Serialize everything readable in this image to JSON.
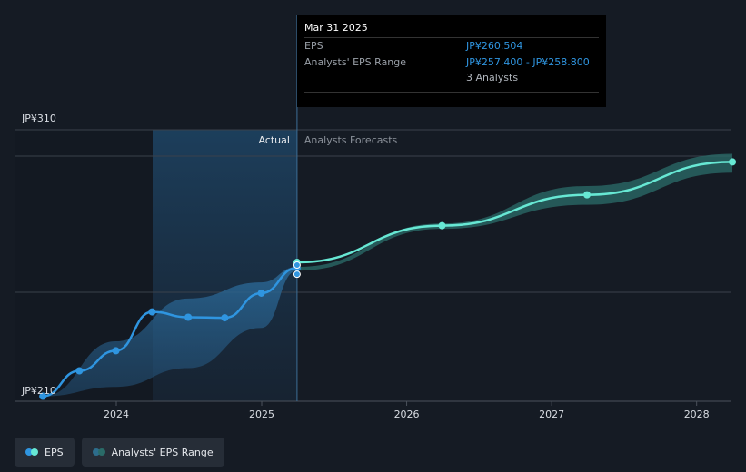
{
  "chart_data": {
    "type": "line",
    "y_axis": {
      "top_label": "JP¥310",
      "bottom_label": "JP¥210",
      "ylim": [
        210,
        310
      ]
    },
    "x_axis": {
      "ticks": [
        "2024",
        "2025",
        "2026",
        "2027",
        "2028"
      ]
    },
    "regions": {
      "actual_label": "Actual",
      "forecast_label": "Analysts Forecasts"
    },
    "series": [
      {
        "name": "EPS",
        "color": "#2f95e0",
        "x": [
          "2023-06-30",
          "2023-09-30",
          "2023-12-31",
          "2024-03-31",
          "2024-06-30",
          "2024-09-30",
          "2024-12-31",
          "2025-03-31"
        ],
        "y": [
          210.5,
          220.0,
          227.5,
          242.0,
          240.0,
          239.8,
          249.0,
          258.4
        ]
      },
      {
        "name": "EPS Forecast",
        "color": "#67e8d4",
        "x": [
          "2025-03-31",
          "2026-03-31",
          "2027-03-31",
          "2028-03-31"
        ],
        "y": [
          260.5,
          274.2,
          285.7,
          298.0
        ]
      }
    ],
    "range_series": {
      "name": "Analysts' EPS Range",
      "actual": {
        "x": [
          "2023-06-30",
          "2023-12-31",
          "2024-06-30",
          "2024-12-31",
          "2025-03-31"
        ],
        "low": [
          210.5,
          214.0,
          221.0,
          236.0,
          257.4
        ],
        "high": [
          210.5,
          231.0,
          247.0,
          253.0,
          258.8
        ]
      },
      "forecast": {
        "x": [
          "2025-03-31",
          "2026-03-31",
          "2027-03-31",
          "2028-03-31"
        ],
        "low": [
          257.4,
          273.0,
          282.0,
          294.0
        ],
        "high": [
          258.8,
          275.0,
          289.0,
          301.0
        ]
      }
    }
  },
  "tooltip": {
    "date": "Mar 31 2025",
    "eps_label": "EPS",
    "eps_value": "JP¥260.504",
    "range_label": "Analysts' EPS Range",
    "range_value": "JP¥257.400 - JP¥258.800",
    "analysts": "3 Analysts"
  },
  "legend": {
    "eps": "EPS",
    "range": "Analysts' EPS Range"
  }
}
